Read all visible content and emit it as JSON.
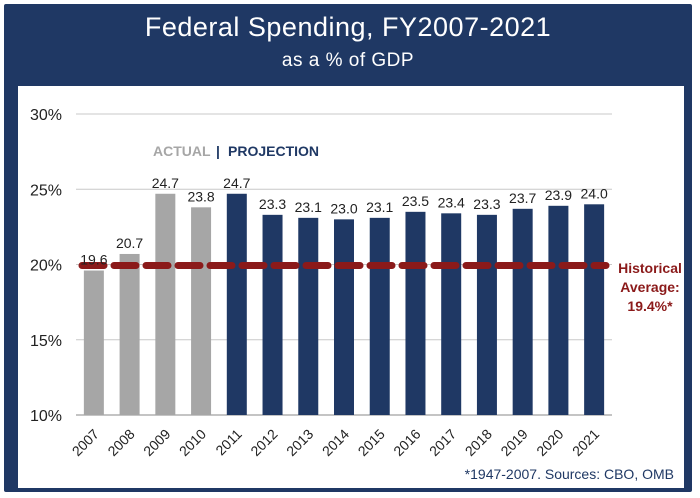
{
  "chart_data": {
    "type": "bar",
    "title": "Federal Spending, FY2007-2021",
    "subtitle": "as a % of GDP",
    "categories": [
      "2007",
      "2008",
      "2009",
      "2010",
      "2011",
      "2012",
      "2013",
      "2014",
      "2015",
      "2016",
      "2017",
      "2018",
      "2019",
      "2020",
      "2021"
    ],
    "values": [
      19.6,
      20.7,
      24.7,
      23.8,
      24.7,
      23.3,
      23.1,
      23.0,
      23.1,
      23.5,
      23.4,
      23.3,
      23.7,
      23.9,
      24.0
    ],
    "value_labels": [
      "19.6",
      "20.7",
      "24.7",
      "23.8",
      "24.7",
      "23.3",
      "23.1",
      "23.0",
      "23.1",
      "23.5",
      "23.4",
      "23.3",
      "23.7",
      "23.9",
      "24.0"
    ],
    "kind": [
      "actual",
      "actual",
      "actual",
      "actual",
      "projection",
      "projection",
      "projection",
      "projection",
      "projection",
      "projection",
      "projection",
      "projection",
      "projection",
      "projection",
      "projection"
    ],
    "ylim": [
      10,
      30
    ],
    "yticks": [
      10,
      15,
      20,
      25,
      30
    ],
    "ytick_labels": [
      "10%",
      "15%",
      "20%",
      "25%",
      "30%"
    ],
    "legend": {
      "actual": "ACTUAL",
      "separator": "|",
      "projection": "PROJECTION"
    },
    "reference_line": {
      "value": 19.4,
      "label_lines": [
        "Historical",
        "Average:",
        "19.4%*"
      ]
    },
    "footnote": "*1947-2007. Sources: CBO, OMB",
    "colors": {
      "actual": "#a6a6a6",
      "projection": "#1f3864",
      "average": "#8b1a1a",
      "header": "#1f3864"
    }
  }
}
